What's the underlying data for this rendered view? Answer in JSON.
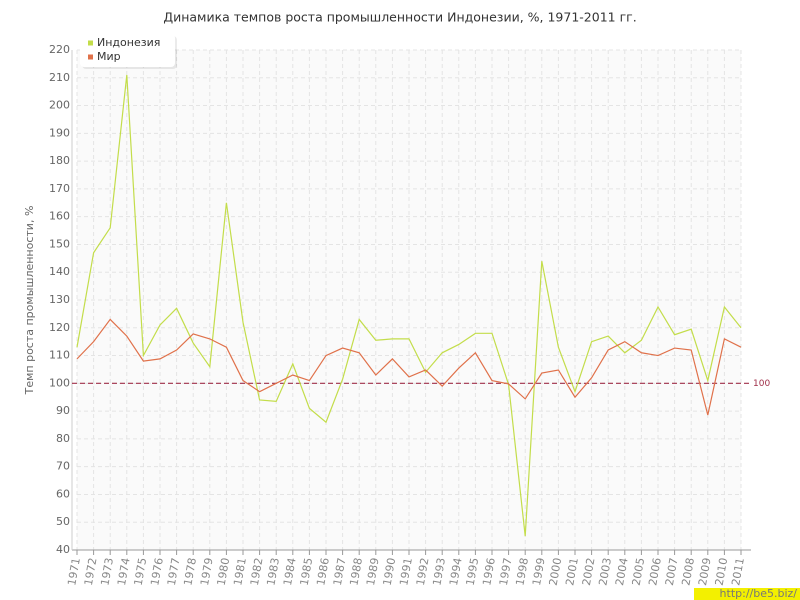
{
  "chart_data": {
    "type": "line",
    "title": "Динамика темпов роста промышленности Индонезии, %, 1971-2011 гг.",
    "y_label": "Темп роста промышленности, %",
    "categories": [
      "1971",
      "1972",
      "1973",
      "1974",
      "1975",
      "1976",
      "1977",
      "1978",
      "1979",
      "1980",
      "1981",
      "1982",
      "1983",
      "1984",
      "1985",
      "1986",
      "1987",
      "1988",
      "1989",
      "1990",
      "1991",
      "1992",
      "1993",
      "1994",
      "1995",
      "1996",
      "1997",
      "1998",
      "1999",
      "2000",
      "2001",
      "2002",
      "2003",
      "2004",
      "2005",
      "2006",
      "2007",
      "2008",
      "2009",
      "2010",
      "2011"
    ],
    "series": [
      {
        "name": "Индонезия",
        "color": "#c3dd4a",
        "values": [
          113,
          147,
          156,
          211,
          110,
          121,
          127,
          114.5,
          106,
          165,
          122,
          94,
          93.5,
          107,
          91,
          86,
          101.5,
          123,
          115.5,
          116,
          116,
          104,
          111,
          114,
          118,
          118,
          99.5,
          45,
          144,
          113,
          97,
          115,
          117,
          111,
          115.5,
          127.5,
          117.5,
          119.5,
          101,
          127.5,
          120
        ]
      },
      {
        "name": "Мир",
        "color": "#e0714a",
        "values": [
          108.8,
          115,
          123,
          117,
          108,
          108.8,
          112,
          117.8,
          116,
          113,
          101,
          97,
          100,
          103,
          101,
          110,
          112.7,
          111,
          103,
          108.8,
          102.3,
          104.8,
          99,
          105.5,
          111,
          101,
          99.8,
          94.4,
          103.7,
          104.8,
          95,
          102,
          112,
          115,
          111,
          110,
          112.7,
          112,
          88.6,
          116,
          113
        ]
      }
    ],
    "reference_line": {
      "value": 100,
      "color": "#a0304a"
    },
    "ylim": [
      40,
      220
    ],
    "yticks": [
      40,
      50,
      60,
      70,
      80,
      90,
      100,
      110,
      120,
      130,
      140,
      150,
      160,
      170,
      180,
      190,
      200,
      210,
      220
    ],
    "grid": true,
    "legend": "top-left",
    "watermark": "http://be5.biz/"
  }
}
